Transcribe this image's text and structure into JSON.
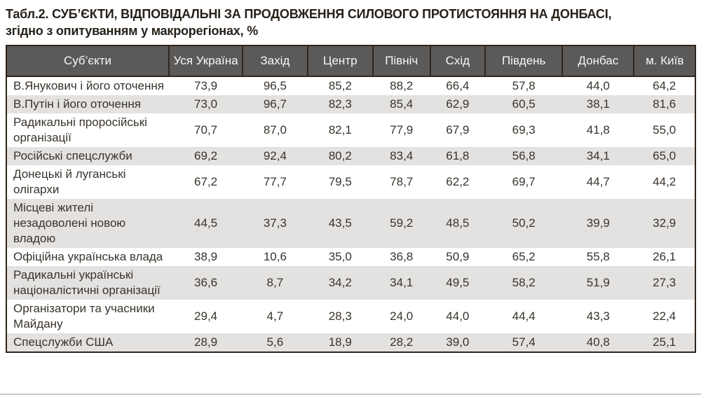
{
  "title": {
    "line1": "Табл.2. СУБ’ЄКТИ, ВІДПОВІДАЛЬНІ ЗА ПРОДОВЖЕННЯ СИЛОВОГО ПРОТИСТОЯННЯ НА ДОНБАСІ,",
    "line2": "згідно з опитуванням у макрорегіонах, %"
  },
  "colors": {
    "header_bg": "#5b5a58",
    "header_text": "#f7f7f7",
    "border_dark": "#30251d",
    "row_alt_bg": "#e3e2e0",
    "body_text": "#39332c",
    "title_text": "#27201a"
  },
  "chart_data": {
    "type": "table",
    "title": "СУБ’ЄКТИ, ВІДПОВІДАЛЬНІ ЗА ПРОДОВЖЕННЯ СИЛОВОГО ПРОТИСТОЯННЯ НА ДОНБАСІ, згідно з опитуванням у макрорегіонах, %",
    "columns": [
      "Суб’єкти",
      "Уся Україна",
      "Захід",
      "Центр",
      "Північ",
      "Схід",
      "Південь",
      "Донбас",
      "м. Київ"
    ],
    "rows": [
      {
        "label": "В.Янукович і його оточення",
        "values": [
          "73,9",
          "96,5",
          "85,2",
          "88,2",
          "66,4",
          "57,8",
          "44,0",
          "64,2"
        ]
      },
      {
        "label": "В.Путін і його оточення",
        "values": [
          "73,0",
          "96,7",
          "82,3",
          "85,4",
          "62,9",
          "60,5",
          "38,1",
          "81,6"
        ]
      },
      {
        "label": "Радикальні проросійські організації",
        "values": [
          "70,7",
          "87,0",
          "82,1",
          "77,9",
          "67,9",
          "69,3",
          "41,8",
          "55,0"
        ]
      },
      {
        "label": "Російські спецслужби",
        "values": [
          "69,2",
          "92,4",
          "80,2",
          "83,4",
          "61,8",
          "56,8",
          "34,1",
          "65,0"
        ]
      },
      {
        "label": "Донецькі й луганські олігархи",
        "values": [
          "67,2",
          "77,7",
          "79,5",
          "78,7",
          "62,2",
          "69,7",
          "44,7",
          "44,2"
        ]
      },
      {
        "label": "Місцеві жителі незадоволені новою владою",
        "values": [
          "44,5",
          "37,3",
          "43,5",
          "59,2",
          "48,5",
          "50,2",
          "39,9",
          "32,9"
        ]
      },
      {
        "label": "Офіційна українська влада",
        "values": [
          "38,9",
          "10,6",
          "35,0",
          "36,8",
          "50,9",
          "65,2",
          "55,8",
          "26,1"
        ]
      },
      {
        "label": "Радикальні українські націоналістичні організації",
        "values": [
          "36,6",
          "8,7",
          "34,2",
          "34,1",
          "49,5",
          "58,2",
          "51,9",
          "27,3"
        ]
      },
      {
        "label": "Організатори та учасники Майдану",
        "values": [
          "29,4",
          "4,7",
          "28,3",
          "24,0",
          "44,0",
          "44,4",
          "43,3",
          "22,4"
        ]
      },
      {
        "label": "Спецслужби США",
        "values": [
          "28,9",
          "5,6",
          "18,9",
          "28,2",
          "39,0",
          "57,4",
          "40,8",
          "25,1"
        ]
      }
    ]
  }
}
